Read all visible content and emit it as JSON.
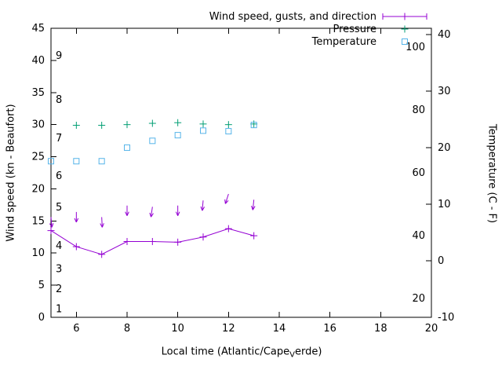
{
  "figure": {
    "background": "#ffffff",
    "axis_color": "#000000"
  },
  "legend": {
    "items": [
      {
        "label": "Wind speed, gusts, and direction",
        "marker": "errorbar-plus",
        "color": "#9400d3"
      },
      {
        "label": "Pressure",
        "marker": "plus",
        "color": "#009e73"
      },
      {
        "label": "Temperature",
        "marker": "square-open",
        "color": "#56b4e9"
      }
    ]
  },
  "axes": {
    "x": {
      "label_prefix": "Local time (Atlantic/Cape",
      "label_sub": "V",
      "label_suffix": "erde)",
      "min": 5,
      "max": 20,
      "ticks": [
        6,
        8,
        10,
        12,
        14,
        16,
        18,
        20
      ]
    },
    "y_left": {
      "label": "Wind speed (kn - Beaufort)",
      "min": 0,
      "max": 45,
      "ticks": [
        0,
        5,
        10,
        15,
        20,
        25,
        30,
        35,
        40,
        45
      ],
      "beaufort": [
        {
          "n": "1",
          "kn": 1.3
        },
        {
          "n": "2",
          "kn": 4.4
        },
        {
          "n": "3",
          "kn": 7.5
        },
        {
          "n": "4",
          "kn": 11.1
        },
        {
          "n": "5",
          "kn": 17.1
        },
        {
          "n": "6",
          "kn": 22.0
        },
        {
          "n": "7",
          "kn": 27.9
        },
        {
          "n": "8",
          "kn": 33.9
        },
        {
          "n": "9",
          "kn": 40.7
        }
      ]
    },
    "y_right": {
      "label": "Temperature (C - F)",
      "min": -10,
      "max": 41.1,
      "ticks": [
        -10,
        0,
        10,
        20,
        30,
        40
      ],
      "fahrenheit": [
        20,
        40,
        60,
        80,
        100
      ]
    }
  },
  "chart_data": {
    "type": "line",
    "title": "",
    "xlabel": "Local time (Atlantic/Cape_Verde)",
    "ylabel": "Wind speed (kn - Beaufort)",
    "y2label": "Temperature (C - F)",
    "x_range": [
      5,
      20
    ],
    "y_left_range": [
      0,
      45
    ],
    "y_right_range_celsius": [
      -10,
      41.1
    ],
    "legend_position": "top-right-inside",
    "grid": false,
    "x": [
      5,
      6,
      7,
      8,
      9,
      10,
      11,
      12,
      13
    ],
    "series": [
      {
        "name": "Wind speed",
        "unit": "kn",
        "axis": "left",
        "marker": "plus",
        "line": true,
        "color": "#9400d3",
        "values": [
          13.5,
          11.0,
          9.8,
          11.8,
          11.8,
          11.7,
          12.5,
          13.8,
          12.7
        ]
      },
      {
        "name": "Wind gusts (arrows show direction)",
        "unit": "kn",
        "axis": "left",
        "marker": "arrow-down",
        "line": false,
        "color": "#9400d3",
        "values": [
          15.6,
          16.4,
          15.6,
          17.4,
          17.2,
          17.4,
          18.2,
          19.2,
          18.3
        ],
        "arrow_tilt_deg": [
          5,
          0,
          3,
          0,
          -8,
          0,
          -5,
          -18,
          -6
        ]
      },
      {
        "name": "Pressure",
        "unit": "plotted on left axis (~inHg)",
        "axis": "left",
        "marker": "plus",
        "line": false,
        "color": "#009e73",
        "x": [
          6,
          7,
          8,
          9,
          10,
          11,
          12,
          13
        ],
        "values": [
          29.9,
          29.9,
          30.0,
          30.2,
          30.3,
          30.1,
          30.0,
          30.1
        ]
      },
      {
        "name": "Temperature",
        "unit": "C",
        "axis": "right",
        "marker": "square-open",
        "line": false,
        "color": "#56b4e9",
        "values": [
          17.6,
          17.6,
          17.6,
          20.0,
          21.2,
          22.2,
          23.0,
          22.9,
          24.0
        ]
      }
    ]
  }
}
